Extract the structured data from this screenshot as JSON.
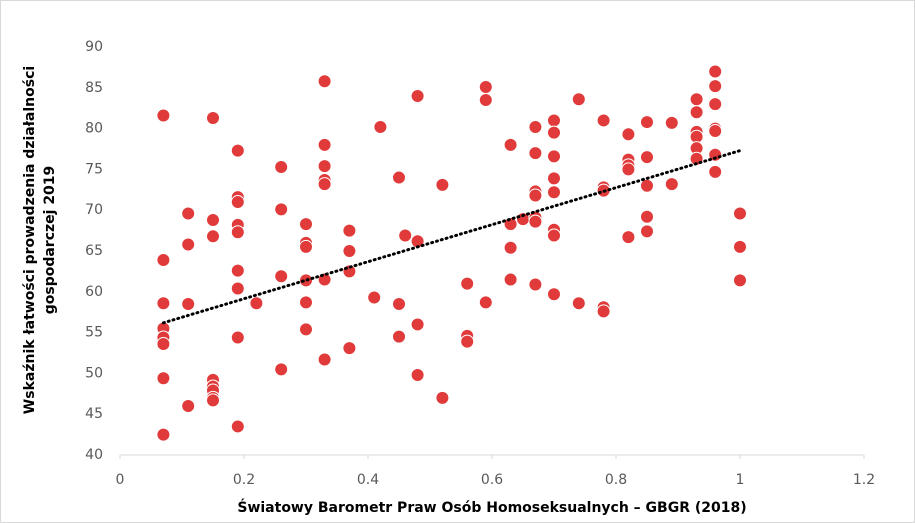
{
  "chart_data": {
    "type": "scatter",
    "x_label": "Światowy Barometr Praw Osób Homoseksualnych – GBGR (2018)",
    "y_label": [
      "Wskaźnik łatwości prowadzenia działalności",
      "gospodarczej 2019"
    ],
    "color": "#e03a3a",
    "x": [
      0.07,
      0.07,
      0.07,
      0.07,
      0.07,
      0.07,
      0.07,
      0.07,
      0.11,
      0.11,
      0.11,
      0.11,
      0.15,
      0.15,
      0.15,
      0.15,
      0.15,
      0.15,
      0.15,
      0.15,
      0.19,
      0.19,
      0.19,
      0.19,
      0.19,
      0.19,
      0.19,
      0.19,
      0.19,
      0.22,
      0.26,
      0.26,
      0.26,
      0.26,
      0.3,
      0.3,
      0.3,
      0.3,
      0.3,
      0.3,
      0.33,
      0.33,
      0.33,
      0.33,
      0.33,
      0.33,
      0.33,
      0.37,
      0.37,
      0.37,
      0.37,
      0.41,
      0.42,
      0.45,
      0.45,
      0.45,
      0.46,
      0.48,
      0.48,
      0.48,
      0.48,
      0.52,
      0.52,
      0.56,
      0.56,
      0.56,
      0.59,
      0.59,
      0.59,
      0.63,
      0.63,
      0.63,
      0.63,
      0.65,
      0.67,
      0.67,
      0.67,
      0.67,
      0.67,
      0.67,
      0.67,
      0.7,
      0.7,
      0.7,
      0.7,
      0.7,
      0.7,
      0.7,
      0.7,
      0.74,
      0.74,
      0.78,
      0.78,
      0.78,
      0.78,
      0.78,
      0.82,
      0.82,
      0.82,
      0.82,
      0.82,
      0.85,
      0.85,
      0.85,
      0.85,
      0.85,
      0.89,
      0.89,
      0.93,
      0.93,
      0.93,
      0.93,
      0.93,
      0.93,
      0.96,
      0.96,
      0.96,
      0.96,
      0.96,
      0.96,
      0.96,
      1.0,
      1.0,
      1.0
    ],
    "values": [
      81.6,
      63.9,
      58.6,
      55.5,
      54.4,
      53.6,
      49.4,
      42.5,
      69.6,
      65.8,
      58.5,
      46.0,
      81.3,
      68.8,
      66.8,
      49.2,
      48.4,
      47.9,
      47.0,
      46.7,
      77.3,
      71.6,
      71.0,
      68.2,
      67.3,
      62.6,
      60.4,
      54.4,
      43.5,
      58.6,
      75.3,
      70.1,
      61.9,
      50.5,
      68.3,
      66.0,
      65.5,
      61.4,
      58.7,
      55.4,
      85.8,
      78.0,
      75.4,
      73.7,
      73.2,
      61.5,
      51.7,
      67.5,
      65.0,
      62.5,
      53.1,
      59.3,
      80.2,
      74.0,
      58.5,
      54.5,
      66.9,
      84.0,
      66.2,
      56.0,
      49.8,
      73.1,
      47.0,
      61.0,
      54.6,
      53.9,
      85.1,
      83.5,
      58.7,
      78.0,
      68.3,
      65.4,
      61.5,
      68.9,
      80.2,
      77.0,
      72.3,
      71.8,
      69.1,
      68.6,
      60.9,
      81.0,
      79.5,
      76.6,
      73.9,
      72.2,
      67.6,
      66.9,
      59.7,
      83.6,
      58.6,
      81.0,
      72.8,
      72.4,
      58.1,
      57.6,
      79.3,
      76.2,
      75.5,
      75.0,
      66.7,
      80.8,
      76.5,
      73.0,
      69.2,
      67.4,
      80.7,
      73.2,
      83.6,
      82.0,
      79.6,
      79.0,
      77.6,
      76.3,
      87.0,
      85.2,
      83.0,
      80.0,
      79.7,
      76.8,
      74.7,
      69.6,
      65.5,
      61.4
    ],
    "trendline": {
      "color": "#000000",
      "x": [
        0.07,
        1.0
      ],
      "values": [
        56.2,
        77.3
      ]
    },
    "xlim": [
      0,
      1.2
    ],
    "xticks": [
      0,
      0.2,
      0.4,
      0.6,
      0.8,
      1,
      1.2
    ],
    "ylim": [
      40,
      90
    ],
    "yticks": [
      40,
      45,
      50,
      55,
      60,
      65,
      70,
      75,
      80,
      85,
      90
    ]
  }
}
